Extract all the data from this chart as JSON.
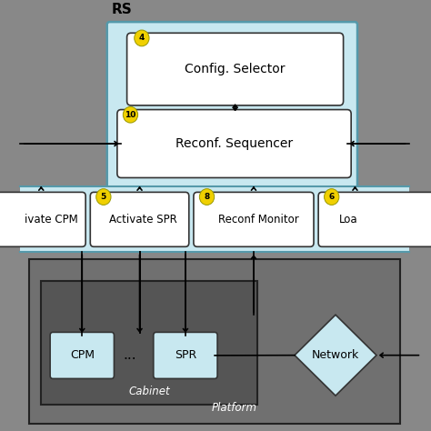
{
  "bg_color": "#888888",
  "light_blue": "#c8e8f0",
  "white": "#ffffff",
  "yellow": "#f0d000",
  "dark": "#222222",
  "mid_gray": "#666666",
  "platform_gray": "#707070",
  "cabinet_gray": "#555555",
  "title_rs": "RS",
  "label_config": "Config. Selector",
  "label_reconf": "Reconf. Sequencer",
  "label_act_cpm": "ivate CPM",
  "label_act_spr": "Activate SPR",
  "label_reconf_mon": "Reconf Monitor",
  "label_load": "Loa",
  "label_cpm": "CPM",
  "label_spr": "SPR",
  "label_dots": "...",
  "label_network": "Network",
  "label_cabinet": "Cabinet",
  "label_platform": "Platform",
  "num_4": "4",
  "num_10": "10",
  "num_5": "5",
  "num_8": "8",
  "num_6": "6",
  "figsize": [
    4.74,
    4.74
  ],
  "dpi": 100
}
